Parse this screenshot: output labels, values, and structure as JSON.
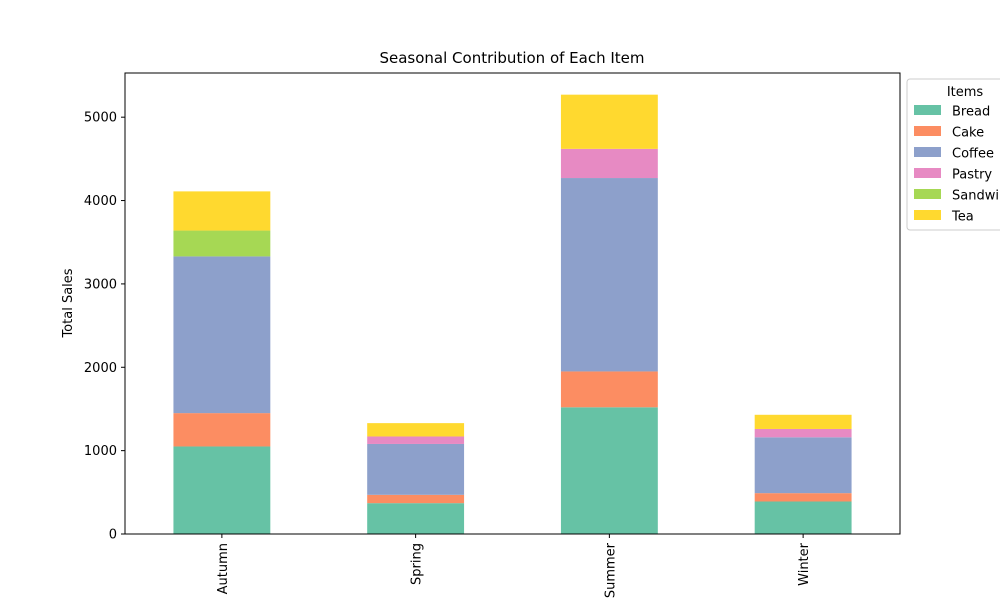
{
  "chart_data": {
    "type": "bar",
    "stacked": true,
    "title": "Seasonal Contribution of Each Item",
    "xlabel": "",
    "ylabel": "Total Sales",
    "categories": [
      "Autumn",
      "Spring",
      "Summer",
      "Winter"
    ],
    "ylim": [
      0,
      5530
    ],
    "yticks": [
      0,
      1000,
      2000,
      3000,
      4000,
      5000
    ],
    "ytick_labels": [
      "0",
      "1000",
      "2000",
      "3000",
      "4000",
      "5000"
    ],
    "grid": false,
    "legend": {
      "title": "Items",
      "position": "top-right, outside plot"
    },
    "series": [
      {
        "name": "Bread",
        "label": "Bread",
        "color": "#66c2a5",
        "values": [
          1050,
          370,
          1520,
          390
        ]
      },
      {
        "name": "Cake",
        "label": "Cake",
        "color": "#fc8d62",
        "values": [
          400,
          100,
          430,
          100
        ]
      },
      {
        "name": "Coffee",
        "label": "Coffee",
        "color": "#8da0cb",
        "values": [
          1880,
          610,
          2320,
          670
        ]
      },
      {
        "name": "Pastry",
        "label": "Pastry",
        "color": "#e78ac3",
        "values": [
          0,
          90,
          350,
          100
        ]
      },
      {
        "name": "Sandwich",
        "label": "Sandwi",
        "color": "#a6d854",
        "values": [
          310,
          0,
          0,
          0
        ]
      },
      {
        "name": "Tea",
        "label": "Tea",
        "color": "#ffd92f",
        "values": [
          470,
          160,
          650,
          170
        ]
      }
    ]
  }
}
